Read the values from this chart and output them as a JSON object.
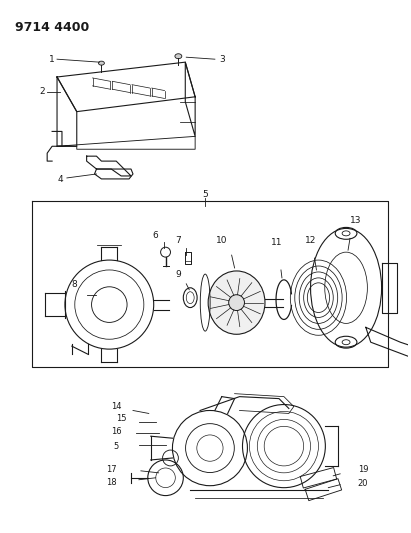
{
  "title": "9714 4400",
  "bg_color": "#ffffff",
  "line_color": "#1a1a1a",
  "fig_width": 4.11,
  "fig_height": 5.33,
  "dpi": 100
}
